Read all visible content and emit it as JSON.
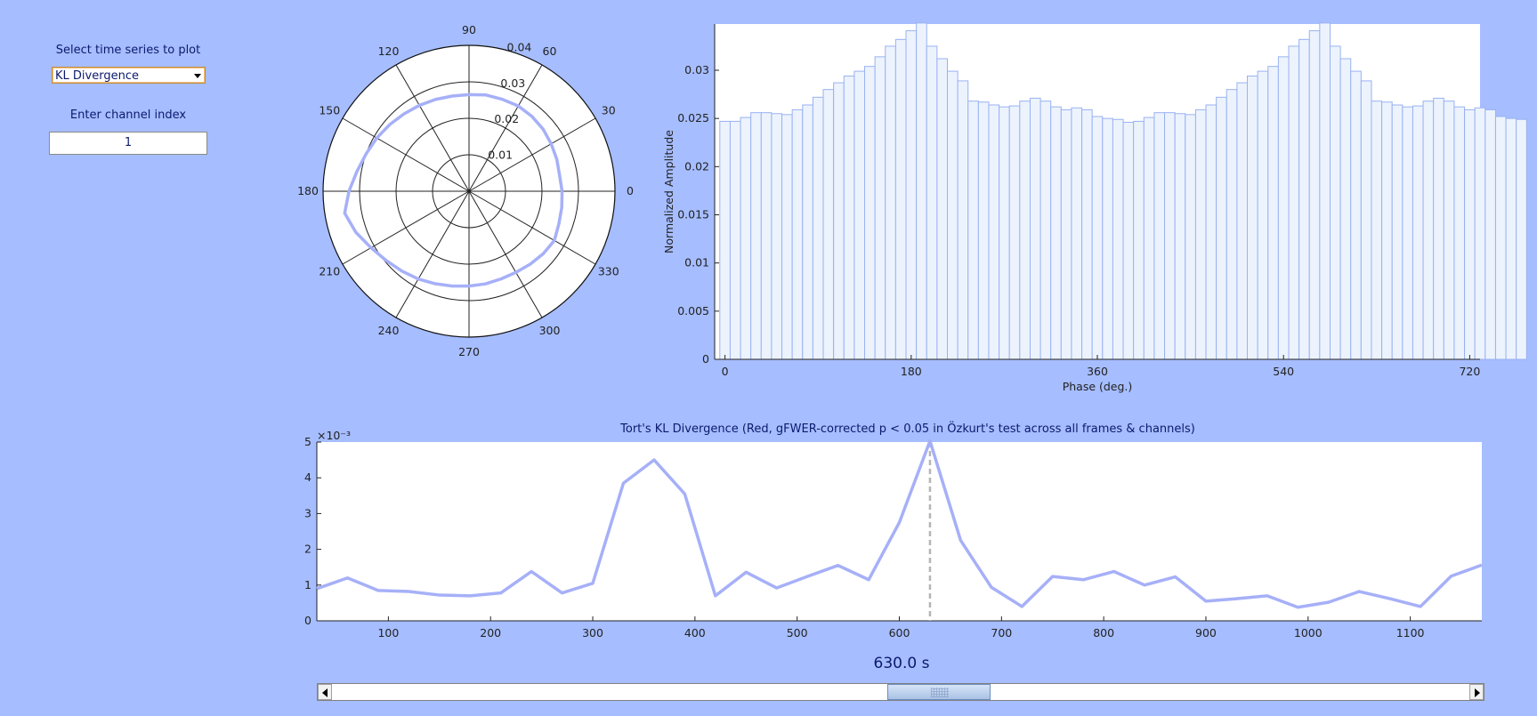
{
  "controls": {
    "select_label": "Select time series to plot",
    "select_value": "KL Divergence",
    "channel_label": "Enter channel index",
    "channel_value": "1"
  },
  "polar": {
    "angle_labels": [
      "0",
      "30",
      "60",
      "90",
      "120",
      "150",
      "180",
      "210",
      "240",
      "270",
      "300",
      "330"
    ],
    "radial_labels": [
      "0.01",
      "0.02",
      "0.03",
      "0.04"
    ]
  },
  "histogram": {
    "ylabel": "Normalized Amplitude",
    "xlabel": "Phase (deg.)",
    "x_ticks": [
      "0",
      "180",
      "360",
      "540",
      "720"
    ],
    "y_ticks": [
      "0",
      "0.005",
      "0.01",
      "0.015",
      "0.02",
      "0.025",
      "0.03"
    ]
  },
  "timeseries": {
    "title": "Tort's KL Divergence (Red, gFWER-corrected p < 0.05 in Özkurt's test across all frames & channels)",
    "exponent_label": "×10⁻³",
    "x_ticks": [
      "100",
      "200",
      "300",
      "400",
      "500",
      "600",
      "700",
      "800",
      "900",
      "1000",
      "1100"
    ],
    "y_ticks": [
      "0",
      "1",
      "2",
      "3",
      "4",
      "5"
    ],
    "current_time": "630.0 s"
  },
  "colors": {
    "background": "#a6bdff",
    "line": "#a6b0f8",
    "bar_fill": "#ecf3fd",
    "bar_edge": "#9ab2f2"
  },
  "chart_data": [
    {
      "type": "line",
      "subtype": "polar",
      "theta_deg": [
        0,
        10,
        20,
        30,
        40,
        50,
        60,
        70,
        80,
        90,
        100,
        110,
        120,
        130,
        140,
        150,
        160,
        170,
        180,
        190,
        200,
        210,
        220,
        230,
        240,
        250,
        260,
        270,
        280,
        290,
        300,
        310,
        320,
        330,
        340,
        350,
        360
      ],
      "r": [
        0.0255,
        0.0252,
        0.0256,
        0.026,
        0.0265,
        0.0268,
        0.027,
        0.0268,
        0.0268,
        0.0265,
        0.0265,
        0.0268,
        0.0272,
        0.0277,
        0.0284,
        0.0292,
        0.03,
        0.0312,
        0.0329,
        0.0346,
        0.033,
        0.031,
        0.0296,
        0.0286,
        0.0278,
        0.027,
        0.0264,
        0.026,
        0.0258,
        0.0256,
        0.0257,
        0.0261,
        0.0266,
        0.027,
        0.0262,
        0.0258,
        0.0255
      ],
      "rlim": [
        0,
        0.04
      ],
      "angle_ticks": [
        0,
        30,
        60,
        90,
        120,
        150,
        180,
        210,
        240,
        270,
        300,
        330
      ],
      "r_ticks": [
        0.01,
        0.02,
        0.03,
        0.04
      ]
    },
    {
      "type": "bar",
      "xlabel": "Phase (deg.)",
      "ylabel": "Normalized Amplitude",
      "xlim": [
        -10,
        730
      ],
      "ylim": [
        0,
        0.0348
      ],
      "bin_width_deg": 10,
      "values": [
        0.0247,
        0.0247,
        0.0251,
        0.0256,
        0.0256,
        0.0255,
        0.0254,
        0.0259,
        0.0264,
        0.0272,
        0.028,
        0.0287,
        0.0294,
        0.0299,
        0.0304,
        0.0314,
        0.0325,
        0.0332,
        0.0341,
        0.0349,
        0.0325,
        0.0312,
        0.0299,
        0.0289,
        0.0268,
        0.0267,
        0.0264,
        0.0262,
        0.0263,
        0.0268,
        0.0271,
        0.0268,
        0.0262,
        0.0259,
        0.0261,
        0.0259,
        0.0252,
        0.025,
        0.0249,
        0.0246,
        0.0247,
        0.0251,
        0.0256,
        0.0256,
        0.0255,
        0.0254,
        0.0259,
        0.0264,
        0.0272,
        0.028,
        0.0287,
        0.0294,
        0.0299,
        0.0304,
        0.0314,
        0.0325,
        0.0332,
        0.0341,
        0.0349,
        0.0325,
        0.0312,
        0.0299,
        0.0289,
        0.0268,
        0.0267,
        0.0264,
        0.0262,
        0.0263,
        0.0268,
        0.0271,
        0.0268,
        0.0262,
        0.0259,
        0.0261,
        0.0259,
        0.0252,
        0.025,
        0.0249
      ],
      "x_ticks": [
        0,
        180,
        360,
        540,
        720
      ]
    },
    {
      "type": "line",
      "title": "Tort's KL Divergence (Red, gFWER-corrected p < 0.05 in Özkurt's test across all frames & channels)",
      "y_multiplier": "×10⁻³",
      "xlim": [
        30,
        1170
      ],
      "ylim": [
        0,
        5
      ],
      "x": [
        30,
        60,
        90,
        120,
        150,
        180,
        210,
        240,
        270,
        300,
        330,
        360,
        390,
        420,
        450,
        480,
        510,
        540,
        570,
        600,
        630,
        660,
        690,
        720,
        750,
        780,
        810,
        840,
        870,
        900,
        930,
        960,
        990,
        1020,
        1050,
        1080,
        1110,
        1140,
        1170
      ],
      "y": [
        0.9,
        1.2,
        0.85,
        0.82,
        0.72,
        0.7,
        0.78,
        1.38,
        0.78,
        1.05,
        3.85,
        4.5,
        3.55,
        0.7,
        1.36,
        0.92,
        1.24,
        1.55,
        1.15,
        2.75,
        5.1,
        2.25,
        0.94,
        0.4,
        1.24,
        1.15,
        1.38,
        1.0,
        1.23,
        0.55,
        0.62,
        0.7,
        0.38,
        0.52,
        0.82,
        0.62,
        0.4,
        1.25,
        1.56
      ],
      "cursor_x": 630,
      "x_ticks": [
        100,
        200,
        300,
        400,
        500,
        600,
        700,
        800,
        900,
        1000,
        1100
      ],
      "y_ticks": [
        0,
        1,
        2,
        3,
        4,
        5
      ]
    }
  ]
}
